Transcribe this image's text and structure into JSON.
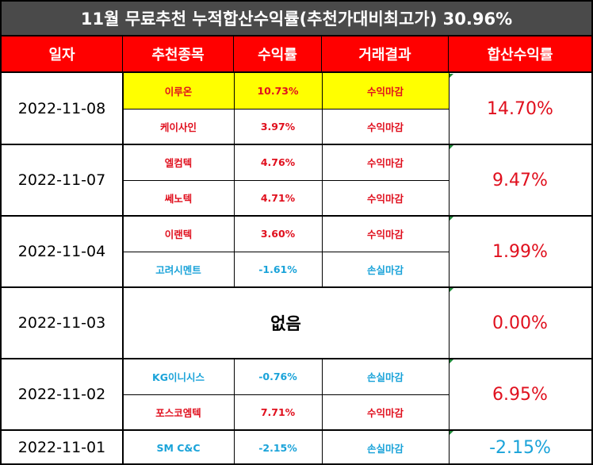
{
  "title": "11월 무료추천 누적합산수익률(추천가대비최고가) 30.96%",
  "headers": [
    "일자",
    "추천종목",
    "수익률",
    "거래결과",
    "합산수익률"
  ],
  "groups": [
    {
      "date": "2022-11-08",
      "total": "14.70%",
      "total_color": "red",
      "rows": [
        {
          "stock": "이루온",
          "return": "10.73%",
          "result": "수익마감",
          "color": "red",
          "highlight": true
        },
        {
          "stock": "케이사인",
          "return": "3.97%",
          "result": "수익마감",
          "color": "red",
          "highlight": false
        }
      ]
    },
    {
      "date": "2022-11-07",
      "total": "9.47%",
      "total_color": "red",
      "rows": [
        {
          "stock": "엘컴텍",
          "return": "4.76%",
          "result": "수익마감",
          "color": "red",
          "highlight": false
        },
        {
          "stock": "쎄노텍",
          "return": "4.71%",
          "result": "수익마감",
          "color": "red",
          "highlight": false
        }
      ]
    },
    {
      "date": "2022-11-04",
      "total": "1.99%",
      "total_color": "red",
      "rows": [
        {
          "stock": "이랜텍",
          "return": "3.60%",
          "result": "수익마감",
          "color": "red",
          "highlight": false
        },
        {
          "stock": "고려시멘트",
          "return": "-1.61%",
          "result": "손실마감",
          "color": "blue",
          "highlight": false
        }
      ]
    },
    {
      "date": "2022-11-03",
      "total": "0.00%",
      "total_color": "red",
      "none_text": "없음",
      "rows": []
    },
    {
      "date": "2022-11-02",
      "total": "6.95%",
      "total_color": "red",
      "rows": [
        {
          "stock": "KG이니시스",
          "return": "-0.76%",
          "result": "손실마감",
          "color": "blue",
          "highlight": false
        },
        {
          "stock": "포스코엠텍",
          "return": "7.71%",
          "result": "수익마감",
          "color": "red",
          "highlight": false
        }
      ]
    },
    {
      "date": "2022-11-01",
      "total": "-2.15%",
      "total_color": "blue",
      "rows": [
        {
          "stock": "SM C&C",
          "return": "-2.15%",
          "result": "손실마감",
          "color": "blue",
          "highlight": false
        }
      ]
    }
  ]
}
